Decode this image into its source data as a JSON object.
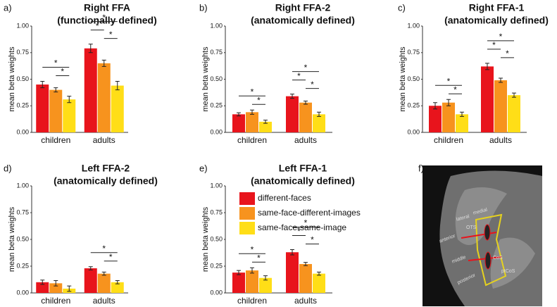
{
  "chart_data": [
    {
      "type": "bar",
      "panel": "a)",
      "title": [
        "Right FFA",
        "(functionally defined)"
      ],
      "y_label": "mean beta weights",
      "categories": [
        "children",
        "adults"
      ],
      "series": [
        {
          "name": "different-faces",
          "color": "#e8141c",
          "values": [
            0.45,
            0.79
          ],
          "errors": [
            0.03,
            0.04
          ]
        },
        {
          "name": "same-face-different-images",
          "color": "#f7931e",
          "values": [
            0.4,
            0.65
          ],
          "errors": [
            0.02,
            0.03
          ]
        },
        {
          "name": "same-face-same-image",
          "color": "#ffde17",
          "values": [
            0.31,
            0.44
          ],
          "errors": [
            0.03,
            0.04
          ]
        }
      ],
      "significance": [
        {
          "category": 0,
          "pair": [
            1,
            2
          ],
          "label": "*"
        },
        {
          "category": 0,
          "pair": [
            0,
            2
          ],
          "label": "*"
        },
        {
          "category": 1,
          "pair": [
            1,
            2
          ],
          "label": "*"
        },
        {
          "category": 1,
          "pair": [
            0,
            1
          ],
          "label": "*"
        },
        {
          "category": 1,
          "pair": [
            0,
            2
          ],
          "label": "*"
        }
      ],
      "ylim": [
        0,
        1
      ],
      "yticks": [
        {
          "value": 0,
          "label": "0.00"
        },
        {
          "value": 0.25,
          "label": "0.25"
        },
        {
          "value": 0.5,
          "label": "0.50"
        },
        {
          "value": 0.75,
          "label": "0.75"
        },
        {
          "value": 1,
          "label": "1.00"
        }
      ],
      "legend": false
    },
    {
      "type": "bar",
      "panel": "b)",
      "title": [
        "Right FFA-2",
        "(anatomically defined)"
      ],
      "y_label": "mean beta weights",
      "categories": [
        "children",
        "adults"
      ],
      "series": [
        {
          "name": "different-faces",
          "color": "#e8141c",
          "values": [
            0.17,
            0.34
          ],
          "errors": [
            0.015,
            0.02
          ]
        },
        {
          "name": "same-face-different-images",
          "color": "#f7931e",
          "values": [
            0.19,
            0.28
          ],
          "errors": [
            0.02,
            0.015
          ]
        },
        {
          "name": "same-face-same-image",
          "color": "#ffde17",
          "values": [
            0.1,
            0.17
          ],
          "errors": [
            0.015,
            0.02
          ]
        }
      ],
      "significance": [
        {
          "category": 0,
          "pair": [
            1,
            2
          ],
          "label": "*"
        },
        {
          "category": 0,
          "pair": [
            0,
            2
          ],
          "label": "*"
        },
        {
          "category": 1,
          "pair": [
            1,
            2
          ],
          "label": "*"
        },
        {
          "category": 1,
          "pair": [
            0,
            1
          ],
          "label": "*"
        },
        {
          "category": 1,
          "pair": [
            0,
            2
          ],
          "label": "*"
        }
      ],
      "ylim": [
        0,
        1
      ],
      "yticks": [
        {
          "value": 0,
          "label": "0.00"
        },
        {
          "value": 0.25,
          "label": "0.25"
        },
        {
          "value": 0.5,
          "label": "0.50"
        },
        {
          "value": 0.75,
          "label": "0.75"
        },
        {
          "value": 1,
          "label": "1.00"
        }
      ],
      "legend": false
    },
    {
      "type": "bar",
      "panel": "c)",
      "title": [
        "Right FFA-1",
        "(anatomically defined)"
      ],
      "y_label": "mean beta weights",
      "categories": [
        "children",
        "adults"
      ],
      "series": [
        {
          "name": "different-faces",
          "color": "#e8141c",
          "values": [
            0.25,
            0.62
          ],
          "errors": [
            0.03,
            0.03
          ]
        },
        {
          "name": "same-face-different-images",
          "color": "#f7931e",
          "values": [
            0.28,
            0.49
          ],
          "errors": [
            0.03,
            0.02
          ]
        },
        {
          "name": "same-face-same-image",
          "color": "#ffde17",
          "values": [
            0.17,
            0.35
          ],
          "errors": [
            0.02,
            0.02
          ]
        }
      ],
      "significance": [
        {
          "category": 0,
          "pair": [
            1,
            2
          ],
          "label": "*"
        },
        {
          "category": 0,
          "pair": [
            0,
            2
          ],
          "label": "*"
        },
        {
          "category": 1,
          "pair": [
            1,
            2
          ],
          "label": "*"
        },
        {
          "category": 1,
          "pair": [
            0,
            1
          ],
          "label": "*"
        },
        {
          "category": 1,
          "pair": [
            0,
            2
          ],
          "label": "*"
        }
      ],
      "ylim": [
        0,
        1
      ],
      "yticks": [
        {
          "value": 0,
          "label": "0.00"
        },
        {
          "value": 0.25,
          "label": "0.25"
        },
        {
          "value": 0.5,
          "label": "0.50"
        },
        {
          "value": 0.75,
          "label": "0.75"
        },
        {
          "value": 1,
          "label": "1.00"
        }
      ],
      "legend": false
    },
    {
      "type": "bar",
      "panel": "d)",
      "title": [
        "Left FFA-2",
        "(anatomically defined)"
      ],
      "y_label": "mean beta weights",
      "categories": [
        "children",
        "adults"
      ],
      "series": [
        {
          "name": "different-faces",
          "color": "#e8141c",
          "values": [
            0.1,
            0.23
          ],
          "errors": [
            0.02,
            0.015
          ]
        },
        {
          "name": "same-face-different-images",
          "color": "#f7931e",
          "values": [
            0.09,
            0.18
          ],
          "errors": [
            0.025,
            0.015
          ]
        },
        {
          "name": "same-face-same-image",
          "color": "#ffde17",
          "values": [
            0.04,
            0.1
          ],
          "errors": [
            0.025,
            0.015
          ]
        }
      ],
      "significance": [
        {
          "category": 1,
          "pair": [
            1,
            2
          ],
          "label": "*"
        },
        {
          "category": 1,
          "pair": [
            0,
            2
          ],
          "label": "*"
        }
      ],
      "ylim": [
        0,
        1
      ],
      "yticks": [
        {
          "value": 0,
          "label": "0.00"
        },
        {
          "value": 0.25,
          "label": "0.25"
        },
        {
          "value": 0.5,
          "label": "0.50"
        },
        {
          "value": 0.75,
          "label": "0.75"
        },
        {
          "value": 1,
          "label": "1.00"
        }
      ],
      "legend": false
    },
    {
      "type": "bar",
      "panel": "e)",
      "title": [
        "Left FFA-1",
        "(anatomically defined)"
      ],
      "y_label": "mean beta weights",
      "categories": [
        "children",
        "adults"
      ],
      "series": [
        {
          "name": "different-faces",
          "color": "#e8141c",
          "values": [
            0.19,
            0.38
          ],
          "errors": [
            0.02,
            0.025
          ]
        },
        {
          "name": "same-face-different-images",
          "color": "#f7931e",
          "values": [
            0.21,
            0.27
          ],
          "errors": [
            0.025,
            0.015
          ]
        },
        {
          "name": "same-face-same-image",
          "color": "#ffde17",
          "values": [
            0.14,
            0.18
          ],
          "errors": [
            0.02,
            0.015
          ]
        }
      ],
      "significance": [
        {
          "category": 0,
          "pair": [
            1,
            2
          ],
          "label": "*"
        },
        {
          "category": 0,
          "pair": [
            0,
            2
          ],
          "label": "*"
        },
        {
          "category": 1,
          "pair": [
            1,
            2
          ],
          "label": "*"
        },
        {
          "category": 1,
          "pair": [
            0,
            1
          ],
          "label": "*"
        },
        {
          "category": 1,
          "pair": [
            0,
            2
          ],
          "label": "*"
        }
      ],
      "ylim": [
        0,
        1
      ],
      "yticks": [
        {
          "value": 0,
          "label": "0.00"
        },
        {
          "value": 0.25,
          "label": "0.25"
        },
        {
          "value": 0.5,
          "label": "0.50"
        },
        {
          "value": 0.75,
          "label": "0.75"
        },
        {
          "value": 1,
          "label": "1.00"
        }
      ],
      "legend": true
    }
  ],
  "image": {
    "panel": "f)",
    "labels": [
      "lateral",
      "medial",
      "OTS",
      "anterior",
      "middle",
      "CoS",
      "posterior",
      "ptCoS"
    ]
  }
}
